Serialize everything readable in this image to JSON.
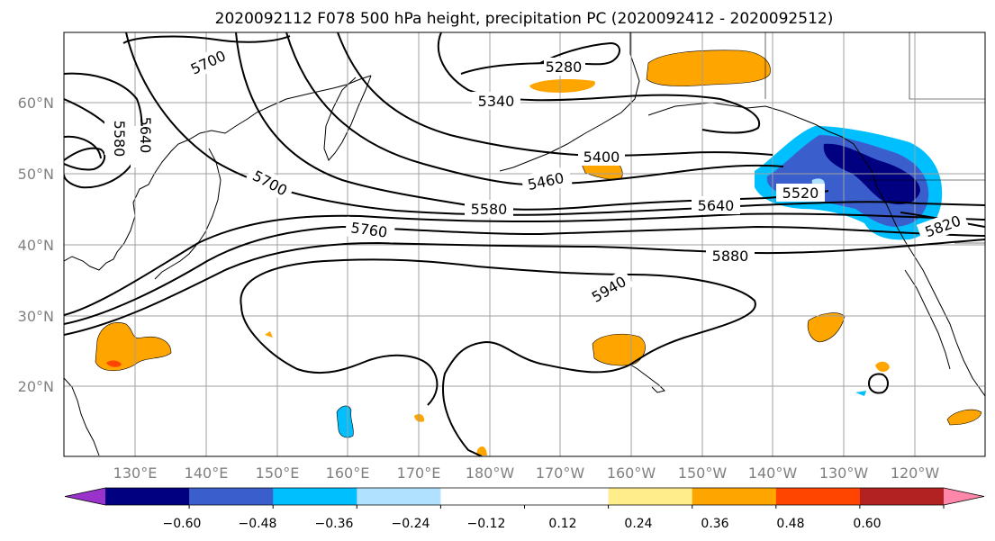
{
  "title": "2020092112 F078 500 hPa height, precipitation PC (2020092412 - 2020092512)",
  "map": {
    "lon_labels": [
      "130°E",
      "140°E",
      "150°E",
      "160°E",
      "170°E",
      "180°W",
      "170°W",
      "160°W",
      "150°W",
      "140°W",
      "130°W",
      "120°W"
    ],
    "lat_labels": [
      "60°N",
      "50°N",
      "40°N",
      "30°N",
      "20°N"
    ],
    "grid": true,
    "contour_labels": [
      "5700",
      "5640",
      "5580",
      "5280",
      "5340",
      "5400",
      "5460",
      "5700",
      "5520",
      "5580",
      "5640",
      "5760",
      "5880",
      "5940",
      "5820"
    ]
  },
  "colorbar": {
    "orientation": "horizontal",
    "extend": "both",
    "colors": [
      "#9933cc",
      "#000080",
      "#3a5fcd",
      "#00bfff",
      "#b0e2ff",
      "#ffffff",
      "#ffffff",
      "#ffec8b",
      "#ffa500",
      "#ff4500",
      "#b22222",
      "#ff88aa"
    ],
    "tick_labels": [
      "−0.60",
      "−0.48",
      "−0.36",
      "−0.24",
      "−0.12",
      "0.12",
      "0.24",
      "0.36",
      "0.48",
      "0.60"
    ]
  }
}
